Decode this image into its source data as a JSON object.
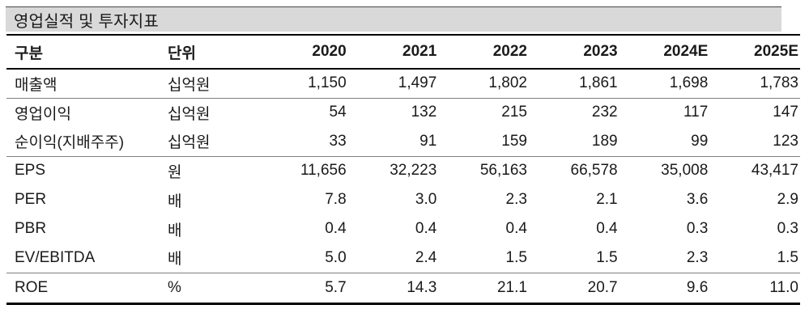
{
  "title": "영업실적 및 투자지표",
  "colors": {
    "title_bg": "#d9d9d9",
    "text": "#1a1a1a",
    "thick_rule": "#000000",
    "thin_rule": "#7f7f7f"
  },
  "table": {
    "headers": [
      "구분",
      "단위",
      "2020",
      "2021",
      "2022",
      "2023",
      "2024E",
      "2025E"
    ],
    "rows": [
      {
        "label": "매출액",
        "unit": "십억원",
        "values": [
          "1,150",
          "1,497",
          "1,802",
          "1,861",
          "1,698",
          "1,783"
        ]
      },
      {
        "label": "영업이익",
        "unit": "십억원",
        "values": [
          "54",
          "132",
          "215",
          "232",
          "117",
          "147"
        ]
      },
      {
        "label": "순이익(지배주주)",
        "unit": "십억원",
        "values": [
          "33",
          "91",
          "159",
          "189",
          "99",
          "123"
        ]
      },
      {
        "label": "EPS",
        "unit": "원",
        "values": [
          "11,656",
          "32,223",
          "56,163",
          "66,578",
          "35,008",
          "43,417"
        ]
      },
      {
        "label": "PER",
        "unit": "배",
        "values": [
          "7.8",
          "3.0",
          "2.3",
          "2.1",
          "3.6",
          "2.9"
        ]
      },
      {
        "label": "PBR",
        "unit": "배",
        "values": [
          "0.4",
          "0.4",
          "0.4",
          "0.4",
          "0.3",
          "0.3"
        ]
      },
      {
        "label": "EV/EBITDA",
        "unit": "배",
        "values": [
          "5.0",
          "2.4",
          "1.5",
          "1.5",
          "2.3",
          "1.5"
        ]
      },
      {
        "label": "ROE",
        "unit": "%",
        "values": [
          "5.7",
          "14.3",
          "21.1",
          "20.7",
          "9.6",
          "11.0"
        ]
      }
    ]
  }
}
